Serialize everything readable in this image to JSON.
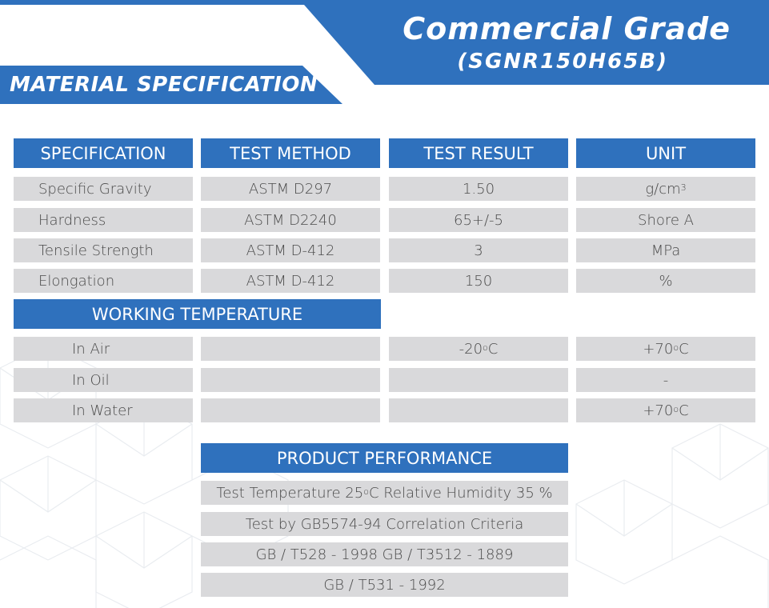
{
  "header": {
    "title": "Commercial Grade",
    "subtitle": "(SGNR150H65B)",
    "section_label": "MATERIAL SPECIFICATION"
  },
  "spec_table": {
    "columns": [
      "SPECIFICATION",
      "TEST METHOD",
      "TEST RESULT",
      "UNIT"
    ],
    "rows": [
      {
        "spec": "Specific Gravity",
        "method": "ASTM D297",
        "result": "1.50",
        "unit_base": "g/cm",
        "unit_sup": "3"
      },
      {
        "spec": "Hardness",
        "method": "ASTM D2240",
        "result": "65+/-5",
        "unit_base": "Shore A",
        "unit_sup": ""
      },
      {
        "spec": "Tensile Strength",
        "method": "ASTM D-412",
        "result": "3",
        "unit_base": "MPa",
        "unit_sup": ""
      },
      {
        "spec": "Elongation",
        "method": "ASTM D-412",
        "result": "150",
        "unit_base": "%",
        "unit_sup": ""
      }
    ]
  },
  "working_temperature": {
    "header": "WORKING TEMPERATURE",
    "rows": [
      {
        "label": "In Air",
        "min_pre": "-20",
        "min_post": "C",
        "max_pre": "+70",
        "max_post": "C",
        "max_plain": ""
      },
      {
        "label": "In Oil",
        "min_pre": "",
        "min_post": "",
        "max_pre": "",
        "max_post": "",
        "max_plain": "-"
      },
      {
        "label": "In Water",
        "min_pre": "",
        "min_post": "",
        "max_pre": "+70",
        "max_post": "C",
        "max_plain": ""
      }
    ],
    "degree_symbol": "o"
  },
  "product_performance": {
    "header": "PRODUCT PERFORMANCE",
    "line1_pre": "Test Temperature 25",
    "line1_post": "C Relative Humidity 35 %",
    "line2": "Test by GB5574-94 Correlation Criteria",
    "line3": "GB / T528 - 1998 GB / T3512 - 1889",
    "line4": "GB / T531 - 1992"
  },
  "colors": {
    "accent": "#2f71bd",
    "cell_bg": "#d9d9db",
    "text": "#4a4a4a"
  }
}
